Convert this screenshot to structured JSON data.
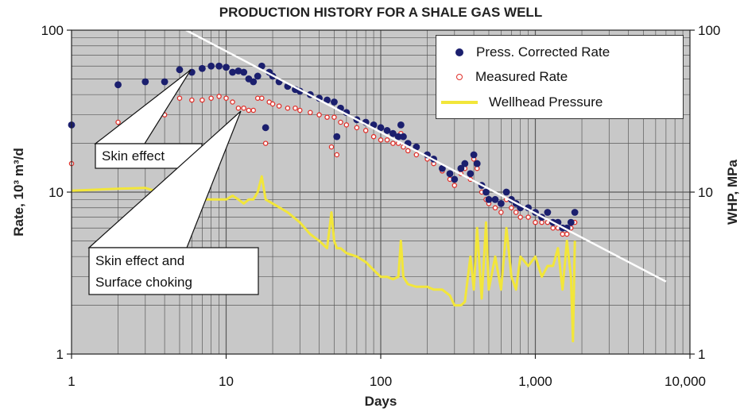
{
  "chart_data": {
    "type": "scatter",
    "title": "PRODUCTION HISTORY FOR A SHALE GAS WELL",
    "xlabel": "Days",
    "ylabel_left": "Rate, 10³ m³/d",
    "ylabel_right": "WHP, MPa",
    "x_scale": "log",
    "y_scale": "log",
    "xlim": [
      1,
      10000
    ],
    "ylim": [
      1,
      100
    ],
    "y2lim": [
      1,
      100
    ],
    "x_ticks": [
      "1",
      "10",
      "100",
      "1,000",
      "10,000"
    ],
    "y_ticks_left": [
      "1",
      "10",
      "100"
    ],
    "y_ticks_right": [
      "1",
      "10",
      "100"
    ],
    "grid": true,
    "legend_position": "top-right",
    "series": [
      {
        "name": "Press. Corrected Rate",
        "marker": "filled-circle",
        "color": "#1b1f6e",
        "points": [
          [
            1,
            26
          ],
          [
            2,
            46
          ],
          [
            3,
            48
          ],
          [
            4,
            48
          ],
          [
            5,
            57
          ],
          [
            6,
            55
          ],
          [
            7,
            58
          ],
          [
            8,
            60
          ],
          [
            9,
            60
          ],
          [
            10,
            59
          ],
          [
            11,
            55
          ],
          [
            12,
            56
          ],
          [
            13,
            55
          ],
          [
            14,
            50
          ],
          [
            15,
            48
          ],
          [
            16,
            52
          ],
          [
            17,
            60
          ],
          [
            18,
            25
          ],
          [
            19,
            55
          ],
          [
            20,
            52
          ],
          [
            22,
            48
          ],
          [
            25,
            45
          ],
          [
            28,
            43
          ],
          [
            30,
            42
          ],
          [
            35,
            40
          ],
          [
            40,
            38
          ],
          [
            45,
            37
          ],
          [
            50,
            36
          ],
          [
            52,
            22
          ],
          [
            55,
            33
          ],
          [
            60,
            31
          ],
          [
            70,
            28
          ],
          [
            80,
            27
          ],
          [
            90,
            26
          ],
          [
            100,
            25
          ],
          [
            110,
            24
          ],
          [
            120,
            23
          ],
          [
            130,
            22
          ],
          [
            135,
            26
          ],
          [
            140,
            22
          ],
          [
            150,
            20
          ],
          [
            170,
            19
          ],
          [
            200,
            17
          ],
          [
            220,
            16
          ],
          [
            250,
            14
          ],
          [
            280,
            13
          ],
          [
            300,
            12
          ],
          [
            330,
            14
          ],
          [
            350,
            15
          ],
          [
            380,
            13
          ],
          [
            400,
            17
          ],
          [
            420,
            15
          ],
          [
            450,
            11
          ],
          [
            480,
            10
          ],
          [
            500,
            9
          ],
          [
            550,
            9
          ],
          [
            600,
            8.5
          ],
          [
            650,
            10
          ],
          [
            700,
            9
          ],
          [
            750,
            8.5
          ],
          [
            800,
            8
          ],
          [
            900,
            8
          ],
          [
            1000,
            7.5
          ],
          [
            1100,
            7
          ],
          [
            1200,
            7.5
          ],
          [
            1300,
            6.5
          ],
          [
            1400,
            6.5
          ],
          [
            1500,
            6
          ],
          [
            1600,
            6
          ],
          [
            1700,
            6.5
          ],
          [
            1800,
            7.5
          ]
        ]
      },
      {
        "name": "Measured Rate",
        "marker": "open-circle",
        "color": "#e0302a",
        "points": [
          [
            1,
            15
          ],
          [
            2,
            27
          ],
          [
            3,
            28
          ],
          [
            4,
            30
          ],
          [
            5,
            38
          ],
          [
            6,
            37
          ],
          [
            7,
            37
          ],
          [
            8,
            38
          ],
          [
            9,
            39
          ],
          [
            10,
            38
          ],
          [
            11,
            36
          ],
          [
            12,
            33
          ],
          [
            13,
            33
          ],
          [
            14,
            32
          ],
          [
            15,
            32
          ],
          [
            16,
            38
          ],
          [
            17,
            38
          ],
          [
            18,
            20
          ],
          [
            19,
            36
          ],
          [
            20,
            35
          ],
          [
            22,
            34
          ],
          [
            25,
            33
          ],
          [
            28,
            33
          ],
          [
            30,
            32
          ],
          [
            35,
            31
          ],
          [
            40,
            30
          ],
          [
            45,
            29
          ],
          [
            48,
            19
          ],
          [
            50,
            29
          ],
          [
            52,
            17
          ],
          [
            55,
            27
          ],
          [
            60,
            26
          ],
          [
            70,
            25
          ],
          [
            80,
            24
          ],
          [
            90,
            22
          ],
          [
            100,
            21
          ],
          [
            110,
            21
          ],
          [
            120,
            20
          ],
          [
            130,
            20
          ],
          [
            135,
            23
          ],
          [
            140,
            19
          ],
          [
            150,
            18
          ],
          [
            170,
            17
          ],
          [
            200,
            16
          ],
          [
            220,
            15
          ],
          [
            250,
            13.5
          ],
          [
            280,
            12
          ],
          [
            300,
            11
          ],
          [
            330,
            13
          ],
          [
            350,
            14
          ],
          [
            380,
            12
          ],
          [
            400,
            16
          ],
          [
            420,
            14
          ],
          [
            450,
            10
          ],
          [
            480,
            9
          ],
          [
            500,
            8.5
          ],
          [
            550,
            8
          ],
          [
            600,
            7.5
          ],
          [
            650,
            9
          ],
          [
            700,
            8
          ],
          [
            750,
            7.5
          ],
          [
            800,
            7
          ],
          [
            900,
            7
          ],
          [
            1000,
            6.5
          ],
          [
            1100,
            6.5
          ],
          [
            1200,
            6.5
          ],
          [
            1300,
            6
          ],
          [
            1400,
            6
          ],
          [
            1500,
            5.5
          ],
          [
            1600,
            5.5
          ],
          [
            1700,
            6
          ],
          [
            1800,
            6.5
          ]
        ]
      },
      {
        "name": "Wellhead Pressure",
        "marker": "line",
        "axis": "right",
        "color": "#f2e63a",
        "points": [
          [
            1,
            10.2
          ],
          [
            2,
            10.5
          ],
          [
            3,
            10.6
          ],
          [
            4,
            9.8
          ],
          [
            5,
            9
          ],
          [
            6,
            9
          ],
          [
            7,
            9
          ],
          [
            8,
            9
          ],
          [
            9,
            9
          ],
          [
            10,
            9
          ],
          [
            11,
            9.5
          ],
          [
            12,
            9
          ],
          [
            13,
            8.5
          ],
          [
            14,
            9
          ],
          [
            15,
            9
          ],
          [
            16,
            10
          ],
          [
            17,
            12.5
          ],
          [
            18,
            9
          ],
          [
            20,
            8.5
          ],
          [
            25,
            7.5
          ],
          [
            30,
            6.5
          ],
          [
            35,
            5.5
          ],
          [
            40,
            5
          ],
          [
            45,
            4.5
          ],
          [
            48,
            7.5
          ],
          [
            50,
            5
          ],
          [
            52,
            4.5
          ],
          [
            55,
            4.5
          ],
          [
            60,
            4.2
          ],
          [
            70,
            4
          ],
          [
            80,
            3.7
          ],
          [
            90,
            3.3
          ],
          [
            100,
            3
          ],
          [
            110,
            3
          ],
          [
            120,
            2.9
          ],
          [
            130,
            3
          ],
          [
            135,
            5
          ],
          [
            140,
            3
          ],
          [
            150,
            2.7
          ],
          [
            170,
            2.6
          ],
          [
            200,
            2.6
          ],
          [
            220,
            2.5
          ],
          [
            250,
            2.5
          ],
          [
            280,
            2.3
          ],
          [
            300,
            2
          ],
          [
            330,
            2
          ],
          [
            350,
            2.1
          ],
          [
            380,
            4
          ],
          [
            400,
            2.5
          ],
          [
            420,
            6
          ],
          [
            450,
            2.2
          ],
          [
            480,
            6.5
          ],
          [
            500,
            2.5
          ],
          [
            550,
            4
          ],
          [
            600,
            2.5
          ],
          [
            650,
            6
          ],
          [
            700,
            3
          ],
          [
            750,
            2.5
          ],
          [
            800,
            4
          ],
          [
            900,
            3.5
          ],
          [
            1000,
            4
          ],
          [
            1100,
            3
          ],
          [
            1200,
            3.5
          ],
          [
            1300,
            3.5
          ],
          [
            1400,
            4.5
          ],
          [
            1500,
            2.5
          ],
          [
            1600,
            5
          ],
          [
            1700,
            3
          ],
          [
            1750,
            1.2
          ],
          [
            1800,
            5
          ]
        ]
      }
    ],
    "annotations": [
      {
        "text": "Skin effect",
        "lines": [
          "Skin effect"
        ]
      },
      {
        "text": "Skin effect and Surface choking",
        "lines": [
          "Skin effect and",
          "Surface choking"
        ]
      }
    ],
    "trend_line": {
      "color": "#ffffff",
      "points": [
        [
          5.5,
          100
        ],
        [
          7000,
          2.8
        ]
      ]
    }
  },
  "colors": {
    "plot_background": "#c8c8c8",
    "grid": "#5a5a5a",
    "corrected": "#1b1f6e",
    "measured": "#e0302a",
    "pressure": "#f2e63a"
  }
}
